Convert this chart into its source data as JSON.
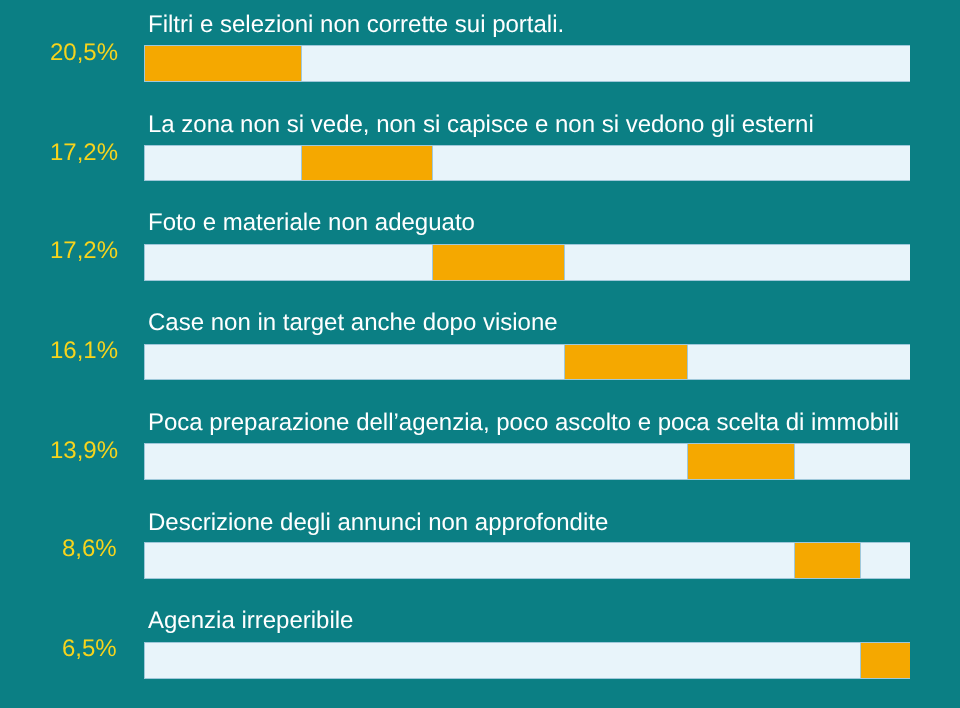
{
  "chart_data": {
    "type": "bar",
    "orientation": "horizontal",
    "stacked": true,
    "categories": [
      "Filtri e selezioni non corrette sui portali.",
      "La zona non si vede, non si capisce e non si vedono gli esterni",
      "Foto e materiale non adeguato",
      "Case non in target anche dopo visione",
      "Poca preparazione dell’agenzia, poco ascolto e poca scelta di immobili",
      "Descrizione degli annunci non approfondite",
      "Agenzia irreperibile"
    ],
    "series": [
      {
        "color": "#e8f4fa",
        "values": [
          0,
          20.5,
          37.7,
          54.9,
          71.0,
          84.9,
          93.5
        ]
      },
      {
        "color": "#f5a800",
        "values": [
          20.5,
          17.2,
          17.2,
          16.1,
          13.9,
          8.6,
          6.5
        ],
        "value_labels": [
          "20,5%",
          "17,2%",
          "17,2%",
          "16,1%",
          "13,9%",
          "8,6%",
          "6,5%"
        ]
      },
      {
        "color": "#e8f4fa",
        "values": [
          79.5,
          62.3,
          45.1,
          29.0,
          15.1,
          6.5,
          null
        ]
      }
    ],
    "tick_labels": false,
    "grid": false
  }
}
